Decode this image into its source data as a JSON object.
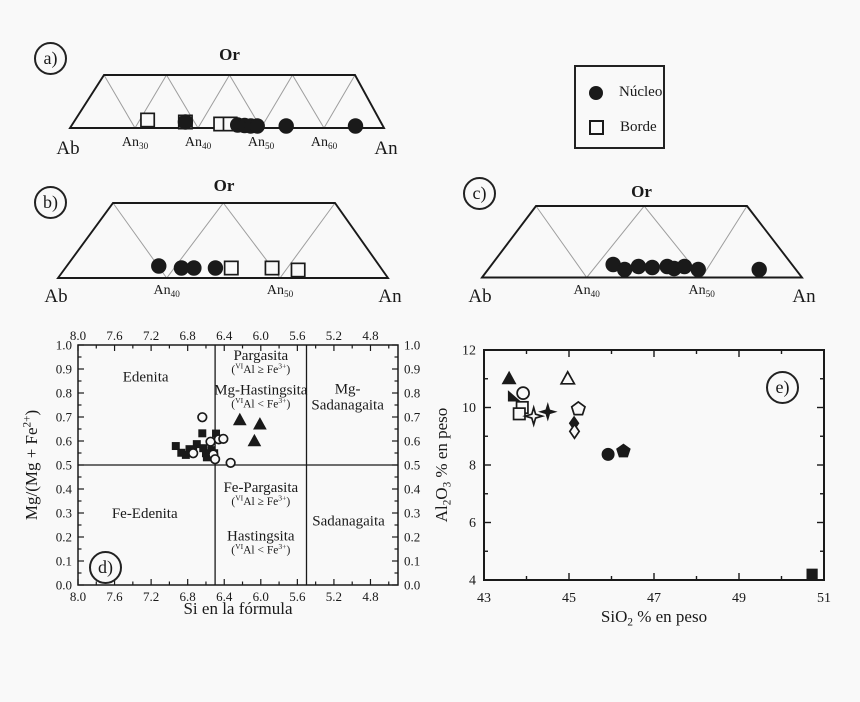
{
  "page": {
    "background": "#f9f9f9",
    "ink": "#1a1a1a",
    "grid_gray": "#9e9e9e"
  },
  "panels": {
    "a": {
      "letter": "a)"
    },
    "b": {
      "letter": "b)"
    },
    "c": {
      "letter": "c)"
    },
    "d": {
      "letter": "d)"
    },
    "e": {
      "letter": "e)"
    }
  },
  "legend": {
    "items": [
      {
        "symbol": "circle-filled",
        "label": "Núcleo"
      },
      {
        "symbol": "square-open",
        "label": "Borde"
      }
    ]
  },
  "chart_data": [
    {
      "id": "a",
      "type": "scatter",
      "subtype": "feldspar-ternary-strip",
      "apex_label": "Or",
      "left_label": "Ab",
      "right_label": "An",
      "an_ticks": [
        30,
        40,
        50,
        60
      ],
      "points": [
        {
          "an": 32.0,
          "dy": -8,
          "symbol": "square-open"
        },
        {
          "an": 38.0,
          "dy": -6,
          "symbol": "square-open"
        },
        {
          "an": 38.0,
          "dy": -6,
          "symbol": "circle-filled"
        },
        {
          "an": 43.6,
          "dy": -4,
          "symbol": "square-open"
        },
        {
          "an": 45.1,
          "dy": -4,
          "symbol": "square-open"
        },
        {
          "an": 46.3,
          "dy": -3,
          "symbol": "circle-filled"
        },
        {
          "an": 47.4,
          "dy": -2.5,
          "symbol": "circle-filled"
        },
        {
          "an": 48.4,
          "dy": -2,
          "symbol": "circle-filled"
        },
        {
          "an": 49.4,
          "dy": -2,
          "symbol": "circle-filled"
        },
        {
          "an": 54.0,
          "dy": -2,
          "symbol": "circle-filled"
        },
        {
          "an": 65.0,
          "dy": -2,
          "symbol": "circle-filled"
        }
      ]
    },
    {
      "id": "b",
      "type": "scatter",
      "subtype": "feldspar-ternary-strip",
      "apex_label": "Or",
      "left_label": "Ab",
      "right_label": "An",
      "an_ticks": [
        40,
        50
      ],
      "points": [
        {
          "an": 39.3,
          "dy": -12,
          "symbol": "circle-filled"
        },
        {
          "an": 41.3,
          "dy": -10,
          "symbol": "circle-filled"
        },
        {
          "an": 42.4,
          "dy": -10,
          "symbol": "circle-filled"
        },
        {
          "an": 44.3,
          "dy": -10,
          "symbol": "circle-filled"
        },
        {
          "an": 45.7,
          "dy": -10,
          "symbol": "square-open"
        },
        {
          "an": 49.3,
          "dy": -10,
          "symbol": "square-open"
        },
        {
          "an": 51.6,
          "dy": -8,
          "symbol": "square-open"
        }
      ]
    },
    {
      "id": "c",
      "type": "scatter",
      "subtype": "feldspar-ternary-strip",
      "apex_label": "Or",
      "left_label": "Ab",
      "right_label": "An",
      "an_ticks": [
        40,
        50
      ],
      "points": [
        {
          "an": 42.3,
          "dy": -13,
          "symbol": "circle-filled"
        },
        {
          "an": 43.3,
          "dy": -8,
          "symbol": "circle-filled"
        },
        {
          "an": 44.5,
          "dy": -11,
          "symbol": "circle-filled"
        },
        {
          "an": 45.7,
          "dy": -10,
          "symbol": "circle-filled"
        },
        {
          "an": 47.0,
          "dy": -11,
          "symbol": "circle-filled"
        },
        {
          "an": 47.6,
          "dy": -9,
          "symbol": "circle-filled"
        },
        {
          "an": 48.5,
          "dy": -11,
          "symbol": "circle-filled"
        },
        {
          "an": 49.7,
          "dy": -8,
          "symbol": "circle-filled"
        },
        {
          "an": 55.0,
          "dy": -8,
          "symbol": "circle-filled"
        }
      ]
    },
    {
      "id": "d",
      "type": "scatter",
      "subtype": "amphibole-classification",
      "xlabel_tokens": [
        {
          "t": "Si en la fórmula"
        }
      ],
      "ylabel_tokens": [
        {
          "t": "Mg/(Mg + Fe"
        },
        {
          "sup": "2+"
        },
        {
          "t": ")"
        }
      ],
      "xlim": [
        8.0,
        4.53
      ],
      "ylim": [
        0.0,
        1.0
      ],
      "x_ticks_major": [
        8.0,
        7.6,
        7.2,
        6.8,
        6.4,
        6.0,
        5.6,
        5.2,
        4.8
      ],
      "x_ticks_minor": [
        7.8,
        7.4,
        7.0,
        6.6,
        6.2,
        5.8,
        5.4,
        5.0,
        4.6
      ],
      "y_ticks_major": [
        0.0,
        0.1,
        0.2,
        0.3,
        0.4,
        0.5,
        0.6,
        0.7,
        0.8,
        0.9,
        1.0
      ],
      "y_ticks_minor": [
        0.05,
        0.15,
        0.25,
        0.35,
        0.45,
        0.55,
        0.65,
        0.75,
        0.85,
        0.95
      ],
      "dividers": {
        "x": [
          6.5,
          5.5
        ],
        "y": [
          0.5
        ]
      },
      "fields": [
        {
          "si": 7.26,
          "mg": 0.868,
          "lines": [
            [
              {
                "t": "Edenita"
              }
            ]
          ]
        },
        {
          "si": 6.0,
          "mg": 0.93,
          "lines": [
            [
              {
                "t": "Pargasita"
              }
            ],
            [
              {
                "t": "("
              },
              {
                "sup": "VI"
              },
              {
                "t": "Al ≥ Fe"
              },
              {
                "sup": "3+"
              },
              {
                "t": ")"
              }
            ]
          ]
        },
        {
          "si": 6.0,
          "mg": 0.785,
          "lines": [
            [
              {
                "t": "Mg-Hastingsita"
              }
            ],
            [
              {
                "t": "("
              },
              {
                "sup": "VI"
              },
              {
                "t": "Al < Fe"
              },
              {
                "sup": "3+"
              },
              {
                "t": ")"
              }
            ]
          ]
        },
        {
          "si": 5.05,
          "mg": 0.79,
          "lines": [
            [
              {
                "t": "Mg-"
              }
            ],
            [
              {
                "t": "Sadanagaita"
              }
            ]
          ]
        },
        {
          "si": 7.27,
          "mg": 0.299,
          "lines": [
            [
              {
                "t": "Fe-Edenita"
              }
            ]
          ]
        },
        {
          "si": 6.0,
          "mg": 0.379,
          "lines": [
            [
              {
                "t": "Fe-Pargasita"
              }
            ],
            [
              {
                "t": "("
              },
              {
                "sup": "VI"
              },
              {
                "t": "Al ≥ Fe"
              },
              {
                "sup": "3+"
              },
              {
                "t": ")"
              }
            ]
          ]
        },
        {
          "si": 6.0,
          "mg": 0.177,
          "lines": [
            [
              {
                "t": "Hastingsita"
              }
            ],
            [
              {
                "t": "("
              },
              {
                "sup": "VI"
              },
              {
                "t": "Al < Fe"
              },
              {
                "sup": "3+"
              },
              {
                "t": ")"
              }
            ]
          ]
        },
        {
          "si": 5.04,
          "mg": 0.268,
          "lines": [
            [
              {
                "t": "Sadanagaita"
              }
            ]
          ]
        }
      ],
      "series": [
        {
          "name": "filled-squares",
          "symbol": "square-filled",
          "points": [
            [
              6.93,
              0.579
            ],
            [
              6.87,
              0.551
            ],
            [
              6.82,
              0.542
            ],
            [
              6.78,
              0.566
            ],
            [
              6.74,
              0.556
            ],
            [
              6.7,
              0.587
            ],
            [
              6.64,
              0.632
            ],
            [
              6.63,
              0.57
            ],
            [
              6.6,
              0.549
            ],
            [
              6.59,
              0.532
            ],
            [
              6.56,
              0.548
            ],
            [
              6.54,
              0.562
            ],
            [
              6.51,
              0.549
            ],
            [
              6.49,
              0.631
            ]
          ]
        },
        {
          "name": "open-circles",
          "symbol": "circle-open",
          "points": [
            [
              6.64,
              0.699
            ],
            [
              6.74,
              0.549
            ],
            [
              6.55,
              0.597
            ],
            [
              6.46,
              0.607
            ],
            [
              6.41,
              0.609
            ],
            [
              6.52,
              0.544
            ],
            [
              6.5,
              0.524
            ],
            [
              6.33,
              0.509
            ]
          ]
        },
        {
          "name": "filled-triangles",
          "symbol": "triangle-filled",
          "points": [
            [
              6.23,
              0.687
            ],
            [
              6.01,
              0.669
            ],
            [
              6.07,
              0.599
            ]
          ]
        }
      ]
    },
    {
      "id": "e",
      "type": "scatter",
      "subtype": "harker-diagram",
      "xlabel_tokens": [
        {
          "t": "SiO"
        },
        {
          "sub": "2"
        },
        {
          "t": " % en peso"
        }
      ],
      "ylabel_tokens": [
        {
          "t": "Al"
        },
        {
          "sub": "2"
        },
        {
          "t": "O"
        },
        {
          "sub": "3"
        },
        {
          "t": " % en peso"
        }
      ],
      "xlim": [
        43,
        51
      ],
      "ylim": [
        4,
        12
      ],
      "x_ticks_major": [
        43,
        45,
        47,
        49,
        51
      ],
      "x_ticks_minor": [
        44,
        46,
        48,
        50
      ],
      "y_ticks_major": [
        4,
        6,
        8,
        10,
        12
      ],
      "y_ticks_minor": [
        5,
        7,
        9,
        11
      ],
      "points": [
        {
          "x": 43.59,
          "y": 11.0,
          "symbol": "triangle-filled"
        },
        {
          "x": 44.97,
          "y": 11.0,
          "symbol": "triangle-open"
        },
        {
          "x": 43.92,
          "y": 10.5,
          "symbol": "circle-open"
        },
        {
          "x": 43.69,
          "y": 10.35,
          "symbol": "triangle-right-filled"
        },
        {
          "x": 43.9,
          "y": 10.0,
          "symbol": "square-open"
        },
        {
          "x": 43.83,
          "y": 9.78,
          "symbol": "square-open"
        },
        {
          "x": 44.17,
          "y": 9.7,
          "symbol": "star4-open"
        },
        {
          "x": 44.5,
          "y": 9.85,
          "symbol": "star4-filled"
        },
        {
          "x": 45.22,
          "y": 9.95,
          "symbol": "pentagon-open"
        },
        {
          "x": 45.12,
          "y": 9.45,
          "symbol": "diamond-filled"
        },
        {
          "x": 45.13,
          "y": 9.17,
          "symbol": "diamond-open"
        },
        {
          "x": 45.92,
          "y": 8.37,
          "symbol": "circle-filled"
        },
        {
          "x": 46.28,
          "y": 8.48,
          "symbol": "pentagon-filled"
        },
        {
          "x": 50.72,
          "y": 4.2,
          "symbol": "square-filled"
        }
      ]
    }
  ]
}
